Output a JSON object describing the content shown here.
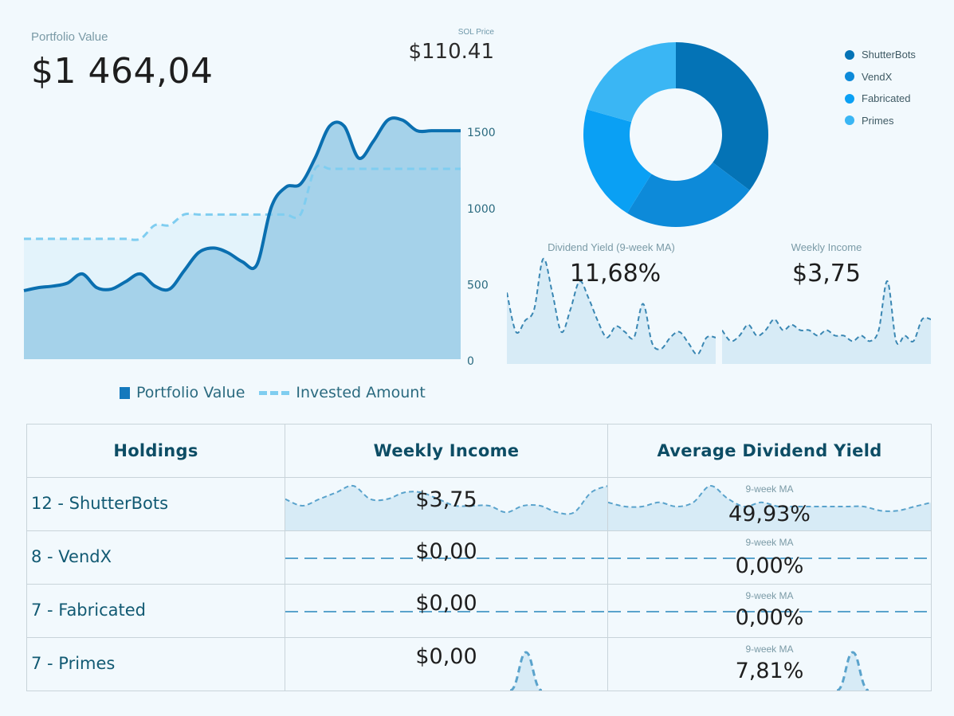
{
  "header": {
    "portfolio_label": "Portfolio Value",
    "portfolio_value": "$1 464,04",
    "sol_label": "SOL Price",
    "sol_value": "$110.41"
  },
  "chart_data": [
    {
      "type": "area",
      "title": "Portfolio Value",
      "x": [
        0,
        1,
        2,
        3,
        4,
        5,
        6,
        7,
        8,
        9,
        10,
        11,
        12,
        13,
        14,
        15,
        16,
        17,
        18,
        19,
        20,
        21,
        22,
        23,
        24,
        25,
        26,
        27,
        28,
        29,
        30
      ],
      "series": [
        {
          "name": "Portfolio Value",
          "style": "solid-area",
          "color": "#0a6fb0",
          "values": [
            450,
            470,
            480,
            500,
            560,
            470,
            460,
            510,
            560,
            480,
            460,
            580,
            700,
            730,
            700,
            640,
            620,
            1000,
            1130,
            1150,
            1320,
            1530,
            1530,
            1320,
            1430,
            1570,
            1570,
            1500,
            1500,
            1500,
            1500
          ]
        },
        {
          "name": "Invested Amount",
          "style": "dashed",
          "color": "#7fcdf0",
          "values": [
            790,
            790,
            790,
            790,
            790,
            790,
            790,
            790,
            790,
            880,
            880,
            950,
            950,
            950,
            950,
            950,
            950,
            950,
            950,
            950,
            1250,
            1250,
            1250,
            1250,
            1250,
            1250,
            1250,
            1250,
            1250,
            1250,
            1250
          ]
        }
      ],
      "ylim": [
        0,
        1600
      ],
      "yticks": [
        "0",
        "500",
        "1000",
        "1500"
      ],
      "legend": [
        "Portfolio Value",
        "Invested Amount"
      ]
    },
    {
      "type": "pie",
      "title": "Holdings",
      "categories": [
        "ShutterBots",
        "VendX",
        "Fabricated",
        "Primes"
      ],
      "values": [
        12,
        8,
        7,
        7
      ],
      "colors": [
        "#0473b6",
        "#0d8ad9",
        "#0aa0f4",
        "#3ab6f4"
      ]
    },
    {
      "type": "area",
      "title": "Dividend Yield (9-week MA)",
      "value_label": "11,68%",
      "values": [
        12,
        5,
        7,
        9,
        18,
        12,
        5,
        9,
        14,
        11,
        7,
        4,
        6,
        5,
        4,
        10,
        3,
        2,
        4,
        5,
        3,
        1,
        4,
        4
      ]
    },
    {
      "type": "area",
      "title": "Weekly Income",
      "value_label": "$3,75",
      "values": [
        4,
        2,
        3,
        5,
        3,
        4,
        6,
        4,
        5,
        4,
        4,
        3,
        4,
        3,
        3,
        2,
        3,
        2,
        4,
        13,
        2,
        3,
        2,
        6,
        6
      ]
    }
  ],
  "pie_legend": [
    {
      "label": "ShutterBots",
      "color": "#0473b6"
    },
    {
      "label": "VendX",
      "color": "#0d8ad9"
    },
    {
      "label": "Fabricated",
      "color": "#0aa0f4"
    },
    {
      "label": "Primes",
      "color": "#3ab6f4"
    }
  ],
  "table": {
    "headers": [
      "Holdings",
      "Weekly Income",
      "Average Dividend Yield"
    ],
    "ma_label": "9-week MA",
    "rows": [
      {
        "holding": "12 - ShutterBots",
        "income": "$3,75",
        "yield": "49,93%",
        "income_spark": [
          4,
          3,
          4,
          5,
          6,
          4,
          4,
          5,
          5,
          4,
          3,
          3,
          3,
          2,
          3,
          3,
          2,
          2,
          5,
          6
        ],
        "yield_spark": [
          6,
          5,
          5,
          6,
          5,
          6,
          10,
          7,
          5,
          6,
          5,
          5,
          5,
          5,
          5,
          5,
          4,
          4,
          5,
          6
        ]
      },
      {
        "holding": "8 - VendX",
        "income": "$0,00",
        "yield": "0,00%",
        "income_spark": [],
        "yield_spark": []
      },
      {
        "holding": "7 - Fabricated",
        "income": "$0,00",
        "yield": "0,00%",
        "income_spark": [],
        "yield_spark": []
      },
      {
        "holding": "7 - Primes",
        "income": "$0,00",
        "yield": "7,81%",
        "income_spark": [],
        "yield_spark": []
      }
    ]
  }
}
